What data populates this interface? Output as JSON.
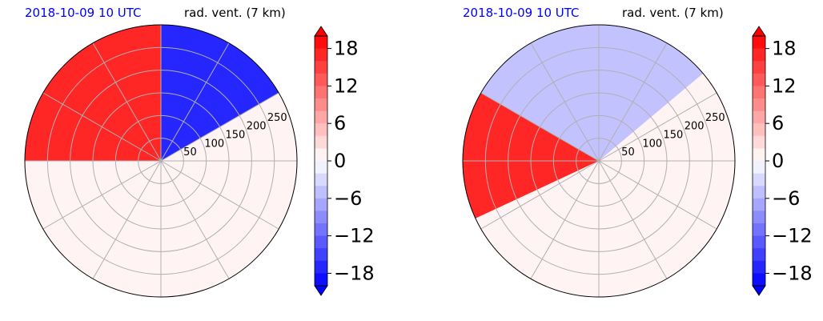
{
  "accent_colors": {
    "title_date": "#0000ff",
    "positive_max": "#ff0000",
    "negative_max": "#0000ff",
    "grid": "#b0b0b0"
  },
  "chart_data": [
    {
      "type": "heatmap",
      "projection": "polar",
      "title_left": "2018-10-09 10 UTC",
      "title_right": "rad. vent. (7 km)",
      "radial_ticks": [
        "50",
        "100",
        "150",
        "200",
        "250"
      ],
      "radial_range": [
        0,
        300
      ],
      "colorbar": {
        "ticks": [
          "18",
          "12",
          "6",
          "0",
          "−6",
          "−12",
          "−18"
        ],
        "tick_values": [
          18,
          12,
          6,
          0,
          -6,
          -12,
          -18
        ],
        "range": [
          -20,
          20
        ],
        "extend": "both",
        "colormap": "bwr"
      },
      "regions": [
        {
          "sign": "positive",
          "theta_range": [
            90,
            180
          ],
          "r_range": [
            0,
            300
          ],
          "value": 18
        },
        {
          "sign": "negative",
          "theta_range": [
            30,
            90
          ],
          "r_range": [
            0,
            300
          ],
          "value": -18
        },
        {
          "sign": "near-zero",
          "theta_range": [
            180,
            390
          ],
          "r_range": [
            0,
            300
          ],
          "value": 1
        }
      ]
    },
    {
      "type": "heatmap",
      "projection": "polar",
      "title_left": "2018-10-09 10 UTC",
      "title_right": "rad. vent. (7 km)",
      "radial_ticks": [
        "50",
        "100",
        "150",
        "200",
        "250"
      ],
      "radial_range": [
        0,
        300
      ],
      "colorbar": {
        "ticks": [
          "18",
          "12",
          "6",
          "0",
          "−6",
          "−12",
          "−18"
        ],
        "tick_values": [
          18,
          12,
          6,
          0,
          -6,
          -12,
          -18
        ],
        "range": [
          -20,
          20
        ],
        "extend": "both",
        "colormap": "bwr"
      },
      "regions": [
        {
          "sign": "positive",
          "theta_range": [
            150,
            205
          ],
          "r_range": [
            0,
            300
          ],
          "value": 18
        },
        {
          "sign": "negative",
          "theta_range": [
            40,
            150
          ],
          "r_range": [
            0,
            300
          ],
          "value": -5
        },
        {
          "sign": "near-zero",
          "theta_range": [
            205,
            400
          ],
          "r_range": [
            0,
            300
          ],
          "value": 1
        }
      ]
    }
  ]
}
